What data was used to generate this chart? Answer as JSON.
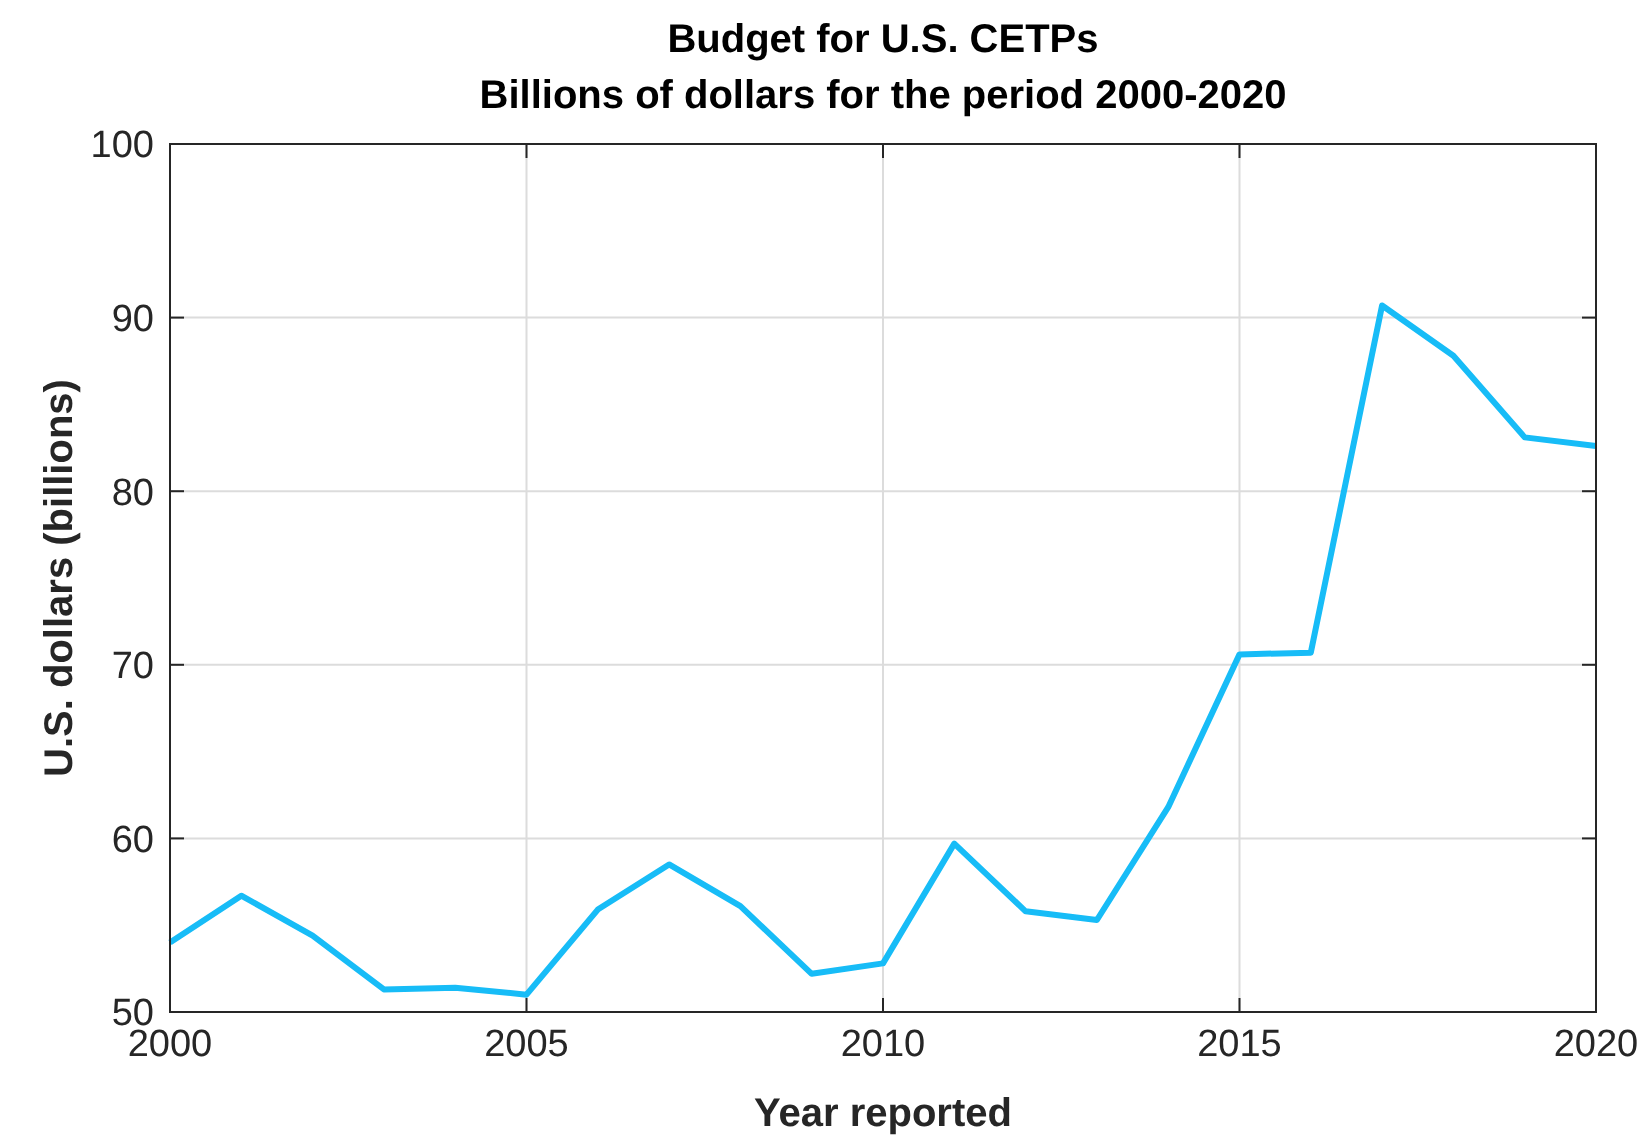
{
  "chart_data": {
    "type": "line",
    "title": "Budget for U.S. CETPs",
    "subtitle": "Billions of dollars for the period 2000-2020",
    "xlabel": "Year reported",
    "ylabel": "U.S. dollars (billions)",
    "x": [
      2000,
      2001,
      2002,
      2003,
      2004,
      2005,
      2006,
      2007,
      2008,
      2009,
      2010,
      2011,
      2012,
      2013,
      2014,
      2015,
      2016,
      2017,
      2018,
      2019,
      2020
    ],
    "series": [
      {
        "color": "#17bcf7",
        "values": [
          54.0,
          56.7,
          54.4,
          51.3,
          51.4,
          51.0,
          55.9,
          58.5,
          56.1,
          52.2,
          52.8,
          59.7,
          55.8,
          55.3,
          61.8,
          70.6,
          70.7,
          90.7,
          87.8,
          83.1,
          82.6
        ]
      }
    ],
    "xlim": [
      2000,
      2020
    ],
    "xticks": [
      2000,
      2005,
      2010,
      2015,
      2020
    ],
    "ylim": [
      50,
      100
    ],
    "yticks": [
      50,
      60,
      70,
      80,
      90,
      100
    ],
    "grid": true,
    "marker": "none",
    "line_style": "solid"
  }
}
